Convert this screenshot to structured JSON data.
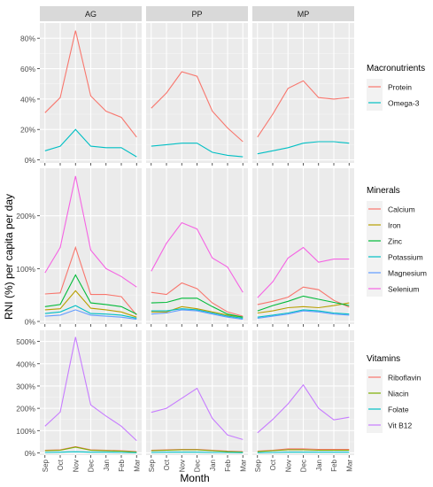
{
  "figure": {
    "y_axis_label": "RNI (%) per capita per day",
    "x_axis_label": "Month",
    "facets": [
      "AG",
      "PP",
      "MP"
    ]
  },
  "chart_data": [
    {
      "type": "line",
      "legend_title": "Macronutrients",
      "categories": [
        "Sep",
        "Oct",
        "Nov",
        "Dec",
        "Jan",
        "Feb",
        "Mar"
      ],
      "y_ticks": [
        0,
        20,
        40,
        60,
        80
      ],
      "y_tick_labels": [
        "0%",
        "20%",
        "40%",
        "60%",
        "80%"
      ],
      "ylim": [
        -2,
        90
      ],
      "grid": true,
      "legend_position": "right",
      "series": [
        {
          "name": "Protein",
          "color": "#F8766D",
          "values": {
            "AG": [
              31,
              41,
              85,
              42,
              32,
              28,
              15
            ],
            "PP": [
              34,
              44,
              58,
              55,
              32,
              21,
              12
            ],
            "MP": [
              15,
              30,
              47,
              52,
              41,
              40,
              41
            ]
          }
        },
        {
          "name": "Omega-3",
          "color": "#00BFC4",
          "values": {
            "AG": [
              6,
              9,
              20,
              9,
              8,
              8,
              2
            ],
            "PP": [
              9,
              10,
              11,
              11,
              5,
              3,
              2
            ],
            "MP": [
              4,
              6,
              8,
              11,
              12,
              12,
              11
            ]
          }
        }
      ]
    },
    {
      "type": "line",
      "legend_title": "Minerals",
      "categories": [
        "Sep",
        "Oct",
        "Nov",
        "Dec",
        "Jan",
        "Feb",
        "Mar"
      ],
      "y_ticks": [
        0,
        100,
        200
      ],
      "y_tick_labels": [
        "0%",
        "100%",
        "200%"
      ],
      "ylim": [
        -5,
        290
      ],
      "grid": true,
      "legend_position": "right",
      "series": [
        {
          "name": "Calcium",
          "color": "#F8766D",
          "values": {
            "AG": [
              52,
              54,
              140,
              51,
              51,
              47,
              12
            ],
            "PP": [
              55,
              51,
              73,
              62,
              35,
              18,
              10
            ],
            "MP": [
              32,
              38,
              46,
              65,
              60,
              40,
              27
            ]
          }
        },
        {
          "name": "Iron",
          "color": "#B79F00",
          "values": {
            "AG": [
              22,
              24,
              58,
              25,
              22,
              18,
              8
            ],
            "PP": [
              18,
              18,
              28,
              24,
              18,
              12,
              8
            ],
            "MP": [
              16,
              20,
              26,
              28,
              26,
              30,
              35
            ]
          }
        },
        {
          "name": "Zinc",
          "color": "#00BA38",
          "values": {
            "AG": [
              28,
              32,
              88,
              35,
              32,
              28,
              14
            ],
            "PP": [
              35,
              36,
              44,
              44,
              28,
              14,
              8
            ],
            "MP": [
              20,
              30,
              38,
              48,
              42,
              36,
              30
            ]
          }
        },
        {
          "name": "Potassium",
          "color": "#00BFC4",
          "values": {
            "AG": [
              15,
              18,
              30,
              15,
              14,
              12,
              6
            ],
            "PP": [
              20,
              20,
              24,
              22,
              16,
              10,
              6
            ],
            "MP": [
              8,
              12,
              16,
              22,
              20,
              16,
              14
            ]
          }
        },
        {
          "name": "Magnesium",
          "color": "#619CFF",
          "values": {
            "AG": [
              10,
              12,
              22,
              12,
              10,
              8,
              4
            ],
            "PP": [
              14,
              16,
              22,
              20,
              14,
              8,
              4
            ],
            "MP": [
              6,
              10,
              14,
              20,
              18,
              14,
              12
            ]
          }
        },
        {
          "name": "Selenium",
          "color": "#F564E3",
          "values": {
            "AG": [
              92,
              140,
              275,
              135,
              100,
              85,
              65
            ],
            "PP": [
              95,
              148,
              187,
              175,
              120,
              103,
              55
            ],
            "MP": [
              45,
              75,
              120,
              140,
              112,
              118,
              118
            ]
          }
        }
      ]
    },
    {
      "type": "line",
      "legend_title": "Vitamins",
      "categories": [
        "Sep",
        "Oct",
        "Nov",
        "Dec",
        "Jan",
        "Feb",
        "Mar"
      ],
      "y_ticks": [
        0,
        100,
        200,
        300,
        400,
        500
      ],
      "y_tick_labels": [
        "0%",
        "100%",
        "200%",
        "300%",
        "400%",
        "500%"
      ],
      "ylim": [
        -10,
        550
      ],
      "grid": true,
      "legend_position": "right",
      "series": [
        {
          "name": "Riboflavin",
          "color": "#F8766D",
          "values": {
            "AG": [
              12,
              14,
              28,
              14,
              12,
              10,
              6
            ],
            "PP": [
              12,
              14,
              16,
              16,
              12,
              8,
              6
            ],
            "MP": [
              8,
              12,
              18,
              18,
              16,
              16,
              16
            ]
          }
        },
        {
          "name": "Niacin",
          "color": "#7CAE00",
          "values": {
            "AG": [
              10,
              12,
              26,
              12,
              10,
              8,
              4
            ],
            "PP": [
              10,
              12,
              14,
              14,
              10,
              6,
              4
            ],
            "MP": [
              6,
              10,
              14,
              14,
              12,
              12,
              12
            ]
          }
        },
        {
          "name": "Folate",
          "color": "#00BFC4",
          "values": {
            "AG": [
              2,
              3,
              5,
              3,
              3,
              2,
              1
            ],
            "PP": [
              2,
              3,
              3,
              3,
              2,
              2,
              1
            ],
            "MP": [
              1,
              2,
              3,
              3,
              3,
              3,
              3
            ]
          }
        },
        {
          "name": "Vit B12",
          "color": "#C77CFF",
          "values": {
            "AG": [
              120,
              183,
              520,
              215,
              165,
              120,
              55
            ],
            "PP": [
              182,
              200,
              245,
              290,
              155,
              80,
              60
            ],
            "MP": [
              90,
              150,
              220,
              305,
              200,
              148,
              160
            ]
          }
        }
      ]
    }
  ]
}
